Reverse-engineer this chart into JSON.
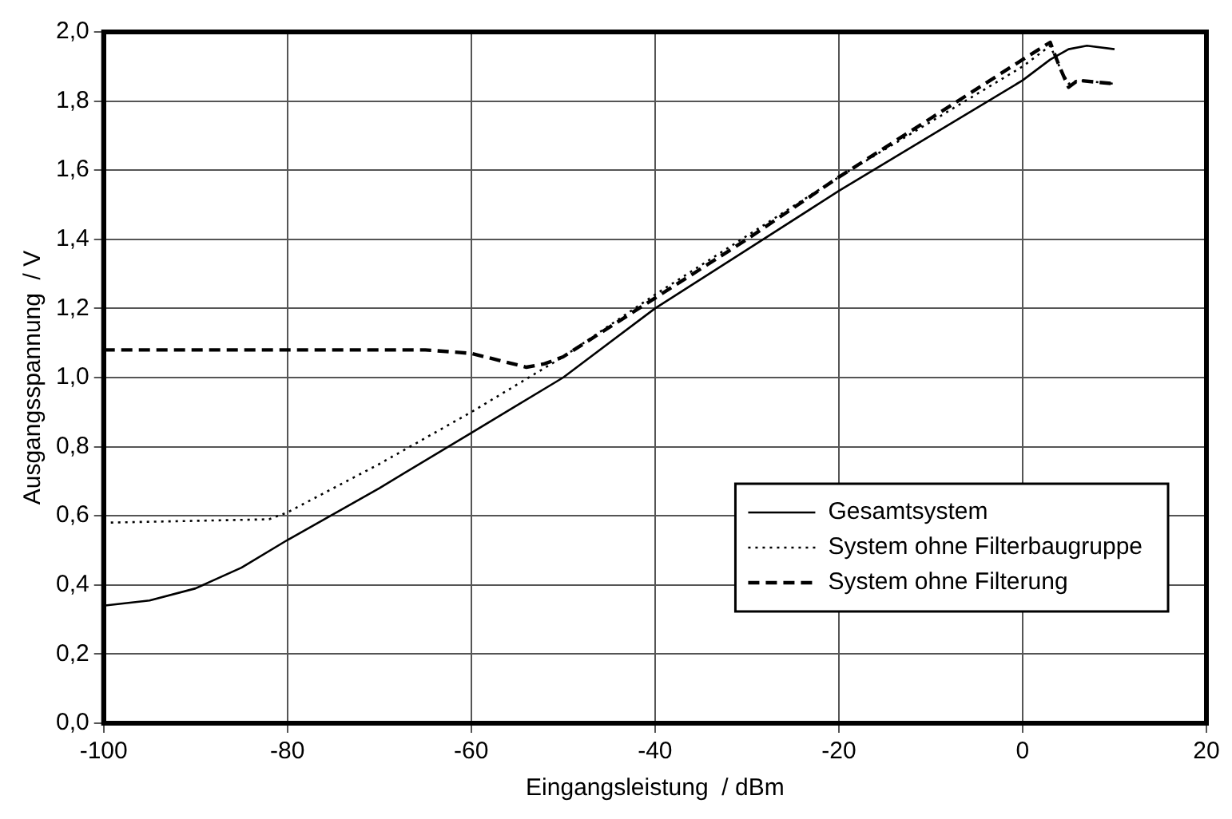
{
  "chart_data": {
    "type": "line",
    "xlabel": "Eingangsleistung  / dBm",
    "ylabel": "Ausgangsspannung  / V",
    "xlim": [
      -100,
      20
    ],
    "xticks": [
      -100,
      -80,
      -60,
      -40,
      -20,
      0,
      20
    ],
    "ylim": [
      0,
      2.0
    ],
    "yticks": [
      {
        "value": 0,
        "label": "0,0"
      },
      {
        "value": 0.2,
        "label": "0,2"
      },
      {
        "value": 0.4,
        "label": "0,4"
      },
      {
        "value": 0.6,
        "label": "0,6"
      },
      {
        "value": 0.8,
        "label": "0,8"
      },
      {
        "value": 1.0,
        "label": "1,0"
      },
      {
        "value": 1.2,
        "label": "1,2"
      },
      {
        "value": 1.4,
        "label": "1,4"
      },
      {
        "value": 1.6,
        "label": "1,6"
      },
      {
        "value": 1.8,
        "label": "1,8"
      },
      {
        "value": 2.0,
        "label": "2,0"
      }
    ],
    "grid": true,
    "legend": "bottom right",
    "marker": "none",
    "series": [
      {
        "name": "Gesamtsystem",
        "color": "#000000",
        "line_style": "solid",
        "x": [
          -100,
          -95,
          -90,
          -85,
          -80,
          -70,
          -60,
          -50,
          -40,
          -30,
          -20,
          -10,
          0,
          3,
          5,
          7,
          10
        ],
        "values": [
          0.34,
          0.355,
          0.39,
          0.45,
          0.53,
          0.68,
          0.84,
          1.0,
          1.2,
          1.37,
          1.54,
          1.7,
          1.86,
          1.92,
          1.95,
          1.96,
          1.95
        ]
      },
      {
        "name": "System ohne Filterbaugruppe",
        "color": "#000000",
        "line_style": "dotted",
        "x": [
          -100,
          -82,
          -80,
          -70,
          -60,
          -50,
          -40,
          -30,
          -20,
          -10,
          0,
          3,
          4,
          5,
          6,
          10
        ],
        "values": [
          0.58,
          0.59,
          0.61,
          0.75,
          0.9,
          1.06,
          1.24,
          1.41,
          1.58,
          1.74,
          1.9,
          1.96,
          1.9,
          1.85,
          1.86,
          1.85
        ]
      },
      {
        "name": "System ohne Filterung",
        "color": "#000000",
        "line_style": "dashed",
        "x": [
          -100,
          -80,
          -65,
          -60,
          -57,
          -54,
          -52,
          -50,
          -40,
          -30,
          -20,
          -10,
          0,
          3,
          4,
          5,
          6,
          10
        ],
        "values": [
          1.08,
          1.08,
          1.08,
          1.07,
          1.05,
          1.03,
          1.04,
          1.06,
          1.23,
          1.4,
          1.58,
          1.75,
          1.92,
          1.97,
          1.9,
          1.84,
          1.86,
          1.85
        ]
      }
    ]
  }
}
